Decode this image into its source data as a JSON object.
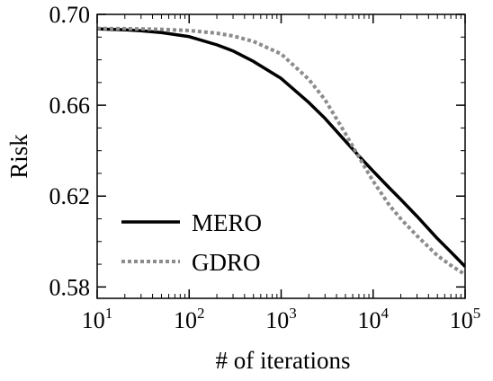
{
  "chart_data": {
    "type": "line",
    "xlabel": "# of iterations",
    "ylabel": "Risk",
    "x_scale": "log",
    "xlim": [
      10,
      100000
    ],
    "ylim": [
      0.575,
      0.7
    ],
    "xticks": [
      {
        "value": 10,
        "base": "10",
        "exp": "1"
      },
      {
        "value": 100,
        "base": "10",
        "exp": "2"
      },
      {
        "value": 1000,
        "base": "10",
        "exp": "3"
      },
      {
        "value": 10000,
        "base": "10",
        "exp": "4"
      },
      {
        "value": 100000,
        "base": "10",
        "exp": "5"
      }
    ],
    "yticks": [
      {
        "value": 0.58,
        "label": "0.58"
      },
      {
        "value": 0.62,
        "label": "0.62"
      },
      {
        "value": 0.66,
        "label": "0.66"
      },
      {
        "value": 0.7,
        "label": "0.70"
      }
    ],
    "grid": false,
    "legend_position": "lower-left",
    "series": [
      {
        "name": "MERO",
        "style": "solid",
        "color": "#000000",
        "x": [
          10,
          20,
          30,
          50,
          100,
          200,
          300,
          500,
          1000,
          2000,
          3000,
          5000,
          7000,
          10000,
          15000,
          20000,
          30000,
          50000,
          70000,
          100000
        ],
        "y": [
          0.6936,
          0.6932,
          0.6928,
          0.692,
          0.6902,
          0.6866,
          0.6839,
          0.6793,
          0.6718,
          0.6612,
          0.6542,
          0.6442,
          0.6377,
          0.631,
          0.6236,
          0.6185,
          0.6111,
          0.6013,
          0.5954,
          0.589
        ]
      },
      {
        "name": "GDRO",
        "style": "dotted",
        "color": "#8c8c8c",
        "x": [
          10,
          20,
          30,
          50,
          100,
          200,
          300,
          500,
          1000,
          2000,
          3000,
          5000,
          7000,
          10000,
          15000,
          20000,
          30000,
          50000,
          70000,
          100000
        ],
        "y": [
          0.6938,
          0.6937,
          0.6936,
          0.6934,
          0.6929,
          0.6917,
          0.6905,
          0.6881,
          0.6826,
          0.6714,
          0.6624,
          0.6475,
          0.6372,
          0.6266,
          0.616,
          0.61,
          0.6025,
          0.5938,
          0.5895,
          0.5855
        ]
      }
    ]
  }
}
